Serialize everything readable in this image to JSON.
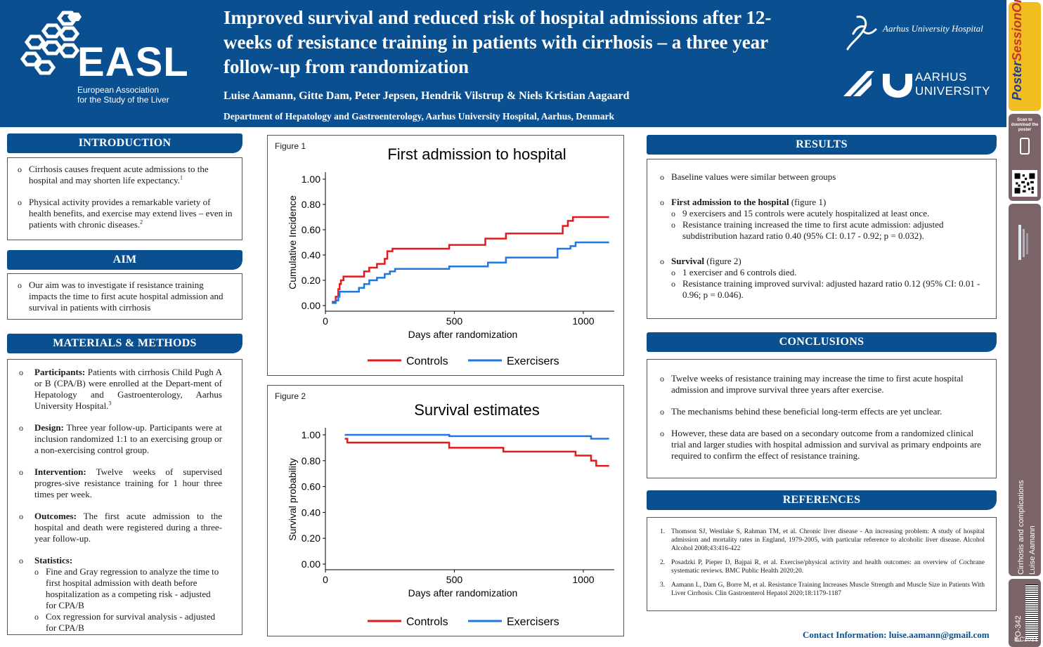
{
  "header": {
    "title": "Improved survival and reduced risk of hospital admissions after 12-weeks of resistance training in patients with cirrhosis – a three year follow-up from randomization",
    "authors": "Luise Aamann, Gitte Dam, Peter Jepsen, Hendrik Vilstrup & Niels Kristian Aagaard",
    "department": "Department of Hepatology and Gastroenterology, Aarhus University Hospital, Aarhus, Denmark",
    "easl_logo_text": "EASL",
    "easl_line1": "European Association",
    "easl_line2": "for the Study of the Liver",
    "auh_text": "Aarhus University Hospital",
    "au_line1": "AARHUS",
    "au_line2": "UNIVERSITY",
    "colors": {
      "header_bg": "#0a4f8f",
      "controls": "#e31a1c",
      "exercisers": "#1f78e0"
    }
  },
  "sidebar": {
    "poster_session_online": "PosterSessionOnline",
    "poster": "Poster",
    "session_online": "SessionOnline",
    "scan_text": "Scan to download the poster",
    "category": "Cirrhosis and complications",
    "author": "Luise Aamann",
    "poster_id": "PO-342",
    "congress": "ILC2021"
  },
  "introduction": {
    "heading": "INTRODUCTION",
    "items": [
      {
        "text": "Cirrhosis causes frequent acute admissions to the hospital and may shorten life expectancy.",
        "ref": "1"
      },
      {
        "text": "Physical activity provides a remarkable variety of health benefits, and exercise may extend lives – even in patients with chronic diseases.",
        "ref": "2"
      }
    ]
  },
  "aim": {
    "heading": "AIM",
    "text": "Our aim was to investigate if resistance training impacts the time to first acute hospital admission and survival in patients with cirrhosis"
  },
  "methods": {
    "heading": "MATERIALS & METHODS",
    "participants_label": "Participants:",
    "participants_text": " Patients with cirrhosis Child Pugh A or B (CPA/B) were enrolled at the Depart-ment of Hepatology and Gastroenterology, Aarhus University Hospital.",
    "participants_ref": "3",
    "design_label": "Design:",
    "design_text": " Three year follow-up. Participants were at inclusion randomized 1:1 to an exercising group or a non-exercising control group.",
    "intervention_label": "Intervention:",
    "intervention_text": " Twelve weeks of supervised progres-sive resistance training for 1 hour three times per week.",
    "outcomes_label": "Outcomes:",
    "outcomes_text": " The first acute admission to the hospital and death were registered during a three-year follow-up.",
    "statistics_label": "Statistics:",
    "statistics_items": [
      "Fine and Gray regression to analyze the time to first hospital admission with death before hospitalization as a competing risk - adjusted for CPA/B",
      "Cox regression for survival analysis - adjusted for CPA/B"
    ]
  },
  "figure1": {
    "label": "Figure 1",
    "title": "First admission to hospital",
    "ylabel": "Cumulative Incidence",
    "xlabel": "Days after randomization",
    "legend_controls": "Controls",
    "legend_exercisers": "Exercisers",
    "xticks": [
      "0",
      "500",
      "1000"
    ],
    "yticks": [
      "0.00",
      "0.20",
      "0.40",
      "0.60",
      "0.80",
      "1.00"
    ]
  },
  "figure2": {
    "label": "Figure 2",
    "title": "Survival estimates",
    "ylabel": "Survival probability",
    "xlabel": "Days after randomization",
    "legend_controls": "Controls",
    "legend_exercisers": "Exercisers",
    "xticks": [
      "0",
      "500",
      "1000"
    ],
    "yticks": [
      "0.00",
      "0.20",
      "0.40",
      "0.60",
      "0.80",
      "1.00"
    ]
  },
  "chart_data": [
    {
      "type": "line",
      "title": "First admission to hospital",
      "xlabel": "Days after randomization",
      "ylabel": "Cumulative Incidence",
      "xlim": [
        0,
        1120
      ],
      "ylim": [
        0,
        1
      ],
      "legend": "bottom",
      "series": [
        {
          "name": "Controls",
          "x": [
            25,
            40,
            50,
            55,
            60,
            70,
            130,
            150,
            170,
            200,
            230,
            240,
            260,
            380,
            480,
            620,
            700,
            920,
            940,
            960,
            1100
          ],
          "y": [
            0.03,
            0.07,
            0.13,
            0.17,
            0.2,
            0.23,
            0.23,
            0.27,
            0.3,
            0.33,
            0.37,
            0.43,
            0.45,
            0.45,
            0.48,
            0.53,
            0.57,
            0.63,
            0.67,
            0.7,
            0.7
          ]
        },
        {
          "name": "Exercisers",
          "x": [
            25,
            40,
            50,
            55,
            130,
            150,
            170,
            200,
            230,
            250,
            270,
            420,
            480,
            630,
            700,
            850,
            900,
            950,
            970,
            1100
          ],
          "y": [
            0.02,
            0.04,
            0.07,
            0.11,
            0.14,
            0.17,
            0.2,
            0.22,
            0.25,
            0.27,
            0.29,
            0.29,
            0.31,
            0.34,
            0.38,
            0.38,
            0.45,
            0.47,
            0.5,
            0.5
          ]
        }
      ]
    },
    {
      "type": "line",
      "title": "Survival estimates",
      "xlabel": "Days after randomization",
      "ylabel": "Survival probability",
      "xlim": [
        0,
        1120
      ],
      "ylim": [
        0,
        1
      ],
      "legend": "bottom",
      "series": [
        {
          "name": "Controls",
          "x": [
            75,
            85,
            480,
            690,
            970,
            1030,
            1050,
            1100
          ],
          "y": [
            0.97,
            0.94,
            0.9,
            0.87,
            0.84,
            0.8,
            0.76,
            0.76
          ]
        },
        {
          "name": "Exercisers",
          "x": [
            75,
            480,
            1030,
            1100
          ],
          "y": [
            1.0,
            0.99,
            0.97,
            0.97
          ]
        }
      ]
    }
  ],
  "results": {
    "heading": "RESULTS",
    "baseline": "Baseline values were similar between groups",
    "first_admission_label": "First admission to the hospital",
    "first_admission_fig": " (figure 1)",
    "first_admission_items": [
      "9 exercisers and 15 controls were acutely hospitalized at least once.",
      "Resistance training increased the time to first acute admission: adjusted subdistribution hazard ratio 0.40 (95% CI: 0.17 - 0.92; p = 0.032)."
    ],
    "survival_label": "Survival",
    "survival_fig": " (figure 2)",
    "survival_items": [
      "1 exerciser and 6 controls died.",
      "Resistance training improved survival: adjusted hazard ratio 0.12 (95% CI: 0.01 - 0.96; p = 0.046)."
    ]
  },
  "conclusions": {
    "heading": "CONCLUSIONS",
    "items": [
      "Twelve weeks of resistance training may increase the time to first acute hospital admission and improve survival three years after exercise.",
      "The mechanisms behind these beneficial long-term effects are yet unclear.",
      "However, these data are based on a secondary outcome from a randomized clinical trial and larger studies with hospital admission and survival as primary endpoints are required to confirm the effect of resistance training."
    ]
  },
  "references": {
    "heading": "REFERENCES",
    "items": [
      {
        "num": "1.",
        "text": "Thomson SJ, Westlake S, Rahman TM, et al. Chronic liver disease - An increasing problem: A study of hospital admission and mortality rates in England, 1979-2005, with particular reference to alcoholic liver disease. Alcohol Alcohol 2008;43:416-422"
      },
      {
        "num": "2.",
        "text": "Posadzki P, Pieper D, Bajpai R, et al. Exercise/physical activity and health outcomes: an overview of Cochrane systematic reviews. BMC Public Health 2020;20."
      },
      {
        "num": "3.",
        "text": "Aamann L, Dam G, Borre M, et al. Resistance Training Increases Muscle Strength and Muscle Size in Patients With Liver Cirrhosis. Clin Gastroenterol Hepatol 2020;18:1179-1187"
      }
    ]
  },
  "contact": "Contact Information: luise.aamann@gmail.com"
}
